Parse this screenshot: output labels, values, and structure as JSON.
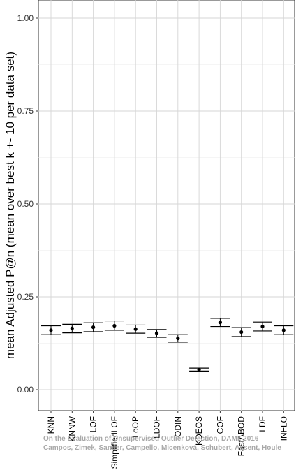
{
  "chart_data": {
    "type": "scatter",
    "ylabel": "mean Adjusted P@n (mean over best k +- 10 per data set)",
    "ylim": [
      -0.04,
      1.05
    ],
    "yticks": [
      0.0,
      0.25,
      0.5,
      0.75,
      1.0
    ],
    "ytick_labels": [
      "0.00",
      "0.25",
      "0.50",
      "0.75",
      "1.00"
    ],
    "grid": true,
    "categories": [
      "KNN",
      "KNNW",
      "LOF",
      "SimplifiedLOF",
      "LoOP",
      "LDOF",
      "ODIN",
      "KDEOS",
      "COF",
      "FastABOD",
      "LDF",
      "INFLO"
    ],
    "series": [
      {
        "values": [
          0.16,
          0.165,
          0.168,
          0.172,
          0.163,
          0.152,
          0.138,
          0.054,
          0.181,
          0.155,
          0.17,
          0.16
        ],
        "lower": [
          0.148,
          0.153,
          0.156,
          0.16,
          0.152,
          0.141,
          0.128,
          0.05,
          0.17,
          0.143,
          0.158,
          0.148
        ],
        "upper": [
          0.172,
          0.176,
          0.18,
          0.185,
          0.174,
          0.162,
          0.148,
          0.058,
          0.192,
          0.167,
          0.182,
          0.172
        ]
      }
    ]
  },
  "watermark": {
    "line1": "On the Evaluation of Unsupervised Outlier Detection, DAMI, 2016",
    "line2": "Campos, Zimek, Sander, Campello, Micenková, Schubert, Assent, Houle"
  }
}
